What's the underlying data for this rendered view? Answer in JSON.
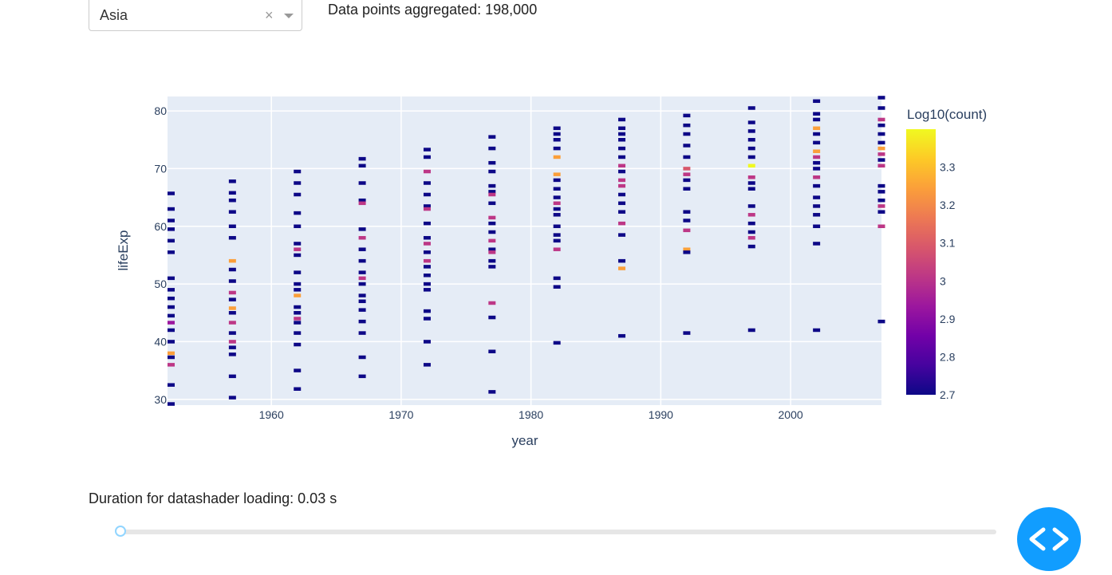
{
  "dropdown": {
    "value": "Asia",
    "clear_glyph": "×"
  },
  "aggregate_text": "Data points aggregated: 198,000",
  "duration_text": "Duration for datashader loading: 0.03 s",
  "slider": {
    "value_fraction": 0.0
  },
  "code_button": {
    "icon": "code-brackets-icon"
  },
  "chart_data": {
    "type": "heatmap",
    "xlabel": "year",
    "ylabel": "lifeExp",
    "xlim": [
      1952,
      2007
    ],
    "ylim": [
      29,
      82.5
    ],
    "xticks": [
      1960,
      1970,
      1980,
      1990,
      2000
    ],
    "yticks": [
      30,
      40,
      50,
      60,
      70,
      80
    ],
    "colorbar": {
      "title": "Log10(count)",
      "range": [
        2.7,
        3.4
      ],
      "ticks": [
        "2.7",
        "2.8",
        "2.9",
        "3",
        "3.1",
        "3.2",
        "3.3"
      ]
    },
    "grid": true,
    "colorscale": [
      "#0d0887",
      "#46039f",
      "#7201a8",
      "#9c179e",
      "#bd3786",
      "#d8576b",
      "#ed7953",
      "#fb9f3a",
      "#fdca26",
      "#f0f921"
    ],
    "columns": [
      {
        "year": 1952,
        "cells": [
          [
            65.7,
            2.7
          ],
          [
            63,
            2.7
          ],
          [
            61,
            2.7
          ],
          [
            59.5,
            2.7
          ],
          [
            57.5,
            2.7
          ],
          [
            55.5,
            2.7
          ],
          [
            51,
            2.7
          ],
          [
            49,
            2.7
          ],
          [
            47.5,
            2.7
          ],
          [
            46,
            2.7
          ],
          [
            44.5,
            2.7
          ],
          [
            43.3,
            2.95
          ],
          [
            42,
            2.7
          ],
          [
            40,
            2.7
          ],
          [
            38,
            3.2
          ],
          [
            37.3,
            2.7
          ],
          [
            36,
            3.0
          ],
          [
            32.5,
            2.7
          ],
          [
            29.2,
            2.7
          ]
        ]
      },
      {
        "year": 1957,
        "cells": [
          [
            67.8,
            2.7
          ],
          [
            65.8,
            2.7
          ],
          [
            64.5,
            2.7
          ],
          [
            62.5,
            2.7
          ],
          [
            60,
            2.7
          ],
          [
            58,
            2.7
          ],
          [
            54,
            3.2
          ],
          [
            52.5,
            2.7
          ],
          [
            50.5,
            2.7
          ],
          [
            48.5,
            3.0
          ],
          [
            47.3,
            2.7
          ],
          [
            45.8,
            3.2
          ],
          [
            45,
            2.7
          ],
          [
            43.3,
            3.0
          ],
          [
            41.5,
            2.7
          ],
          [
            40,
            3.0
          ],
          [
            39,
            2.7
          ],
          [
            37.8,
            2.7
          ],
          [
            34,
            2.7
          ],
          [
            30.3,
            2.7
          ]
        ]
      },
      {
        "year": 1962,
        "cells": [
          [
            69.5,
            2.7
          ],
          [
            67.5,
            2.7
          ],
          [
            65.5,
            2.7
          ],
          [
            62.3,
            2.7
          ],
          [
            60,
            2.7
          ],
          [
            57,
            2.7
          ],
          [
            56,
            3.0
          ],
          [
            55,
            2.7
          ],
          [
            52,
            2.7
          ],
          [
            50,
            2.7
          ],
          [
            49,
            2.7
          ],
          [
            48,
            3.2
          ],
          [
            46,
            2.7
          ],
          [
            45,
            2.7
          ],
          [
            44,
            3.0
          ],
          [
            43.3,
            2.7
          ],
          [
            41.5,
            2.7
          ],
          [
            39.5,
            2.7
          ],
          [
            35,
            2.7
          ],
          [
            31.8,
            2.7
          ]
        ]
      },
      {
        "year": 1967,
        "cells": [
          [
            71.7,
            2.7
          ],
          [
            70.5,
            2.7
          ],
          [
            67.5,
            2.7
          ],
          [
            64.5,
            2.7
          ],
          [
            64,
            3.0
          ],
          [
            59.5,
            2.7
          ],
          [
            58,
            3.0
          ],
          [
            56,
            2.7
          ],
          [
            54,
            2.7
          ],
          [
            52,
            2.7
          ],
          [
            51,
            3.0
          ],
          [
            50,
            2.7
          ],
          [
            48,
            2.7
          ],
          [
            47,
            2.7
          ],
          [
            45.5,
            2.7
          ],
          [
            43.5,
            2.7
          ],
          [
            41.5,
            2.7
          ],
          [
            37.3,
            2.7
          ],
          [
            34,
            2.7
          ]
        ]
      },
      {
        "year": 1972,
        "cells": [
          [
            73.3,
            2.7
          ],
          [
            72,
            2.7
          ],
          [
            69.5,
            3.0
          ],
          [
            67.5,
            2.7
          ],
          [
            65.5,
            2.7
          ],
          [
            63.5,
            2.7
          ],
          [
            63,
            3.0
          ],
          [
            60.5,
            2.7
          ],
          [
            58,
            2.7
          ],
          [
            57,
            3.0
          ],
          [
            55.5,
            2.7
          ],
          [
            54,
            3.0
          ],
          [
            53,
            2.7
          ],
          [
            51.5,
            2.7
          ],
          [
            50,
            2.7
          ],
          [
            49,
            2.7
          ],
          [
            45.3,
            2.7
          ],
          [
            44,
            2.7
          ],
          [
            40,
            2.7
          ],
          [
            36,
            2.7
          ]
        ]
      },
      {
        "year": 1977,
        "cells": [
          [
            75.5,
            2.7
          ],
          [
            73.5,
            2.7
          ],
          [
            71,
            2.7
          ],
          [
            69.5,
            2.7
          ],
          [
            67,
            2.7
          ],
          [
            66,
            2.7
          ],
          [
            65.5,
            3.0
          ],
          [
            64,
            2.7
          ],
          [
            61.5,
            3.0
          ],
          [
            60.5,
            2.7
          ],
          [
            59,
            2.7
          ],
          [
            57.5,
            3.0
          ],
          [
            56,
            2.7
          ],
          [
            55.5,
            3.0
          ],
          [
            54,
            2.7
          ],
          [
            53,
            2.7
          ],
          [
            46.7,
            3.0
          ],
          [
            44.2,
            2.7
          ],
          [
            38.3,
            2.7
          ],
          [
            31.3,
            2.7
          ]
        ]
      },
      {
        "year": 1982,
        "cells": [
          [
            77,
            2.7
          ],
          [
            76,
            2.7
          ],
          [
            75,
            2.7
          ],
          [
            73.5,
            2.7
          ],
          [
            72,
            3.2
          ],
          [
            69,
            3.2
          ],
          [
            68,
            2.7
          ],
          [
            66.5,
            2.7
          ],
          [
            65,
            2.7
          ],
          [
            64,
            3.0
          ],
          [
            63,
            2.7
          ],
          [
            62,
            2.7
          ],
          [
            60,
            2.7
          ],
          [
            58.5,
            2.7
          ],
          [
            57.5,
            2.7
          ],
          [
            56,
            3.0
          ],
          [
            51,
            2.7
          ],
          [
            49.5,
            2.7
          ],
          [
            39.8,
            2.7
          ]
        ]
      },
      {
        "year": 1987,
        "cells": [
          [
            78.5,
            2.7
          ],
          [
            77,
            2.7
          ],
          [
            76,
            2.7
          ],
          [
            75,
            2.7
          ],
          [
            73.5,
            2.7
          ],
          [
            72,
            2.7
          ],
          [
            70.5,
            3.0
          ],
          [
            69.5,
            2.7
          ],
          [
            68,
            3.0
          ],
          [
            67,
            3.0
          ],
          [
            65.5,
            2.7
          ],
          [
            64,
            2.7
          ],
          [
            62.5,
            2.7
          ],
          [
            60.5,
            3.0
          ],
          [
            58.5,
            2.7
          ],
          [
            54,
            2.7
          ],
          [
            52.7,
            3.2
          ],
          [
            41,
            2.7
          ]
        ]
      },
      {
        "year": 1992,
        "cells": [
          [
            79.2,
            2.7
          ],
          [
            77.5,
            2.7
          ],
          [
            76,
            2.7
          ],
          [
            74,
            2.7
          ],
          [
            72,
            2.7
          ],
          [
            70,
            3.1
          ],
          [
            69,
            3.0
          ],
          [
            68,
            2.7
          ],
          [
            66.5,
            2.7
          ],
          [
            62.5,
            2.7
          ],
          [
            61,
            2.7
          ],
          [
            59.3,
            3.0
          ],
          [
            56,
            3.2
          ],
          [
            55.5,
            2.7
          ],
          [
            41.5,
            2.7
          ]
        ]
      },
      {
        "year": 1997,
        "cells": [
          [
            80.5,
            2.7
          ],
          [
            78,
            2.7
          ],
          [
            76.5,
            2.7
          ],
          [
            75,
            2.7
          ],
          [
            73.5,
            2.7
          ],
          [
            72,
            2.7
          ],
          [
            70.5,
            3.4
          ],
          [
            68.5,
            3.0
          ],
          [
            67.5,
            2.7
          ],
          [
            66.5,
            2.7
          ],
          [
            63.5,
            2.7
          ],
          [
            62,
            3.0
          ],
          [
            60.5,
            2.7
          ],
          [
            59,
            2.7
          ],
          [
            58,
            3.0
          ],
          [
            56.5,
            2.7
          ],
          [
            42,
            2.7
          ]
        ]
      },
      {
        "year": 2002,
        "cells": [
          [
            81.7,
            2.7
          ],
          [
            79.5,
            2.7
          ],
          [
            78.5,
            2.7
          ],
          [
            77,
            3.2
          ],
          [
            76,
            2.7
          ],
          [
            74.5,
            2.7
          ],
          [
            73,
            3.2
          ],
          [
            72,
            3.0
          ],
          [
            71,
            2.7
          ],
          [
            70,
            2.7
          ],
          [
            68.5,
            3.0
          ],
          [
            67,
            2.7
          ],
          [
            65,
            2.7
          ],
          [
            63.5,
            2.7
          ],
          [
            62,
            2.7
          ],
          [
            60,
            2.7
          ],
          [
            57,
            2.7
          ],
          [
            42,
            2.7
          ]
        ]
      },
      {
        "year": 2007,
        "cells": [
          [
            82.3,
            2.7
          ],
          [
            80.5,
            2.7
          ],
          [
            78.5,
            3.0
          ],
          [
            77.5,
            2.7
          ],
          [
            76,
            2.7
          ],
          [
            74.5,
            2.7
          ],
          [
            73.5,
            3.2
          ],
          [
            72.5,
            3.0
          ],
          [
            71.5,
            2.7
          ],
          [
            70.5,
            3.0
          ],
          [
            67,
            2.7
          ],
          [
            66,
            2.7
          ],
          [
            64.5,
            2.7
          ],
          [
            63.5,
            3.0
          ],
          [
            62.5,
            2.7
          ],
          [
            60,
            3.0
          ],
          [
            43.5,
            2.7
          ]
        ]
      }
    ]
  }
}
